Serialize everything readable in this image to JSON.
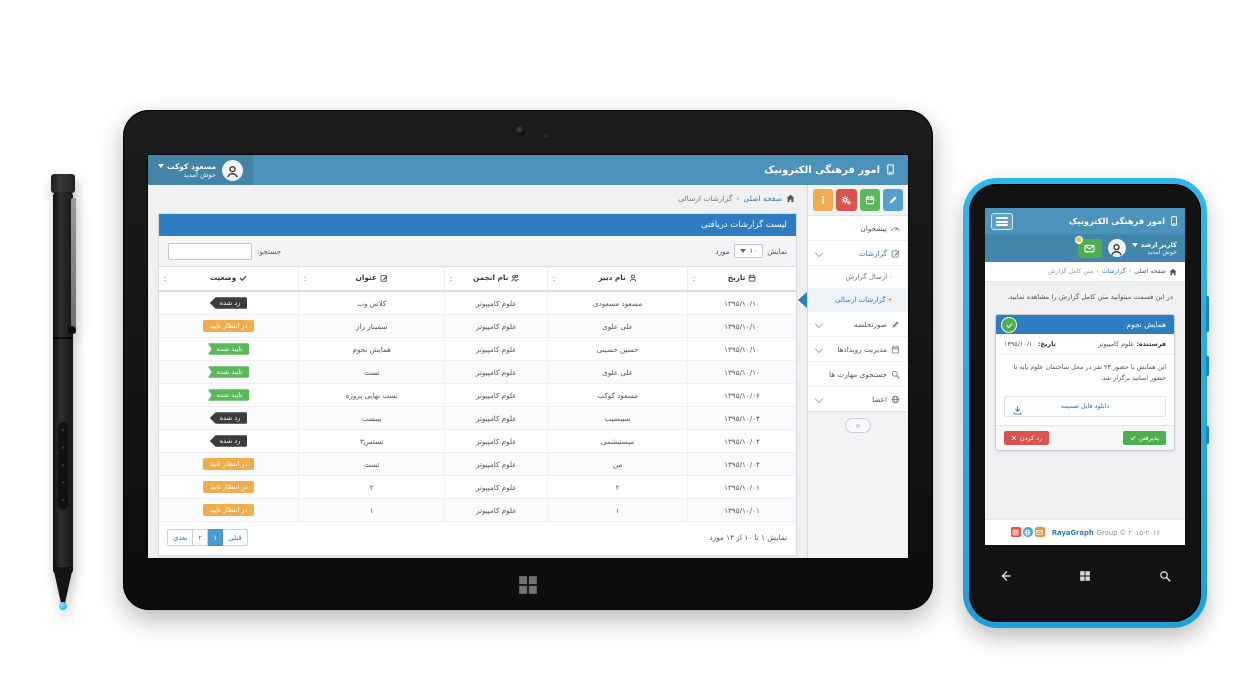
{
  "app_title": "امور فرهنگی الکترونیک",
  "colors": {
    "topbar_blue": "#4b93ba",
    "panel_blue": "#2e7dc2",
    "link_blue": "#337ab7",
    "badge_rejected": "#3c3c3c",
    "badge_pending": "#f0ad4e",
    "badge_approved": "#5cb85c",
    "phone_frame_cyan": "#29b0e8",
    "accept_green": "#4cae4c",
    "reject_red": "#d9534f"
  },
  "tablet": {
    "user": {
      "name": "مسعود کوکب",
      "welcome": "خوش آمدید"
    },
    "breadcrumb": {
      "home": "صفحه اصلی",
      "sep": "›",
      "current": "گزارشات ارسالی"
    },
    "sidebar": {
      "quick_buttons": [
        {
          "name": "info-button",
          "icon": "info-icon",
          "color": "#f0ad4e"
        },
        {
          "name": "settings-button",
          "icon": "gears-icon",
          "color": "#d9534f"
        },
        {
          "name": "events-button",
          "icon": "calendar-icon",
          "color": "#5cb85c"
        },
        {
          "name": "compose-button",
          "icon": "pencil-icon",
          "color": "#56a0ce"
        }
      ],
      "items": [
        {
          "label": "پیشخوان",
          "icon": "gauge-icon",
          "type": "parent"
        },
        {
          "label": "گزارشات",
          "icon": "edit-icon",
          "type": "parent",
          "chevron": true,
          "open": true
        },
        {
          "label": "ارسال گزارش",
          "type": "child"
        },
        {
          "label": "گزارشات ارسالی",
          "type": "child",
          "active": true
        },
        {
          "label": "صورتجلسه",
          "icon": "pencil-icon",
          "type": "parent",
          "chevron": true
        },
        {
          "label": "مدیریت رویدادها",
          "icon": "calendar-icon",
          "type": "parent",
          "chevron": true
        },
        {
          "label": "جستجوی مهارت ها",
          "icon": "search-icon",
          "type": "parent"
        },
        {
          "label": "اعضا",
          "icon": "globe-icon",
          "type": "parent",
          "chevron": true
        }
      ],
      "collapse_glyph": "«"
    },
    "panel": {
      "title": "لیست گزارشات دریافتی",
      "show_label": "نمایش",
      "show_value": "۱۰",
      "unit_label": "مورد",
      "search_label": "جستجو:"
    },
    "table": {
      "columns": [
        {
          "label": "تاریخ",
          "icon": "calendar-icon"
        },
        {
          "label": "نام دبیر",
          "icon": "user-icon"
        },
        {
          "label": "نام انجمن",
          "icon": "users-icon"
        },
        {
          "label": "عنوان",
          "icon": "edit-icon"
        },
        {
          "label": "وضعیت",
          "icon": "check-icon"
        }
      ],
      "rows": [
        {
          "date": "۱۳۹۵/۱۰/۱۰",
          "secretary": "مسعود مسعودی",
          "association": "علوم کامپیوتر",
          "title": "کلاس وب",
          "status": "رد شده",
          "status_type": "rejected"
        },
        {
          "date": "۱۳۹۵/۱۰/۱۰",
          "secretary": "علی علوی",
          "association": "علوم کامپیوتر",
          "title": "سمینار راز",
          "status": "در انتظار تایید",
          "status_type": "pending"
        },
        {
          "date": "۱۳۹۵/۱۰/۱۰",
          "secretary": "حسین حسینی",
          "association": "علوم کامپیوتر",
          "title": "همایش نجوم",
          "status": "تایید شده",
          "status_type": "approved"
        },
        {
          "date": "۱۳۹۵/۱۰/۱۰",
          "secretary": "علی علوی",
          "association": "علوم کامپیوتر",
          "title": "تست",
          "status": "تایید شده",
          "status_type": "approved"
        },
        {
          "date": "۱۳۹۵/۱۰/۰۶",
          "secretary": "مسعود کوکب",
          "association": "علوم کامپیوتر",
          "title": "تست نهایی پروژه",
          "status": "تایید شده",
          "status_type": "approved"
        },
        {
          "date": "۱۳۹۵/۱۰/۰۴",
          "secretary": "سیبسیب",
          "association": "علوم کامپیوتر",
          "title": "بیبسب",
          "status": "رد شده",
          "status_type": "rejected"
        },
        {
          "date": "۱۳۹۵/۱۰/۰۴",
          "secretary": "میسنیشمی",
          "association": "علوم کامپیوتر",
          "title": "تستس۳",
          "status": "رد شده",
          "status_type": "rejected"
        },
        {
          "date": "۱۳۹۵/۱۰/۰۴",
          "secretary": "من",
          "association": "علوم کامپیوتر",
          "title": "تست",
          "status": "در انتظار تایید",
          "status_type": "pending"
        },
        {
          "date": "۱۳۹۵/۱۰/۰۱",
          "secretary": "۲",
          "association": "علوم کامپیوتر",
          "title": "۲",
          "status": "در انتظار تایید",
          "status_type": "pending"
        },
        {
          "date": "۱۳۹۵/۱۰/۰۱",
          "secretary": "۱",
          "association": "علوم کامپیوتر",
          "title": "۱",
          "status": "در انتظار تایید",
          "status_type": "pending"
        }
      ]
    },
    "footer": {
      "info": "نمایش ۱ تا ۱۰ از ۱۳ مورد",
      "prev": "قبلی",
      "pages": [
        "۱",
        "۲"
      ],
      "active_page": "۱",
      "next": "بعدی"
    }
  },
  "phone": {
    "user": {
      "name": "کاربر ارشد",
      "welcome": "خوش آمدید"
    },
    "breadcrumb": {
      "home": "صفحه اصلی",
      "sep": "›",
      "mid": "گزارشات",
      "current": "متن کامل گزارش"
    },
    "intro": "در این قسمت میتوانید متن کامل گزارش را مشاهده نمایید.",
    "card": {
      "title": "همایش نجوم",
      "sender_label": "فرستنده:",
      "sender": "علوم کامپیوتر",
      "date_label": "تاریخ:",
      "date": "۱۳۹۵/۱۰/۱۰",
      "body": "این همایش با حضور ۲۳ نفر در محل ساختمان علوم پایه با حضور اساتید برگزار شد.",
      "attachment": "دانلود فایل ضمیمه",
      "accept": "پذیرفتن",
      "reject": "رد کردن"
    },
    "footer": {
      "brand": "RayaGraph",
      "rest": " Group © ۲۰۱۵-۲۰۱۶",
      "social_icons": [
        {
          "name": "instagram-icon",
          "glyph": "camera-icon",
          "color": "#e8573f",
          "shape": "square"
        },
        {
          "name": "globe-icon",
          "glyph": "globe-icon",
          "color": "#36a3dc",
          "shape": "circle"
        },
        {
          "name": "email-icon",
          "glyph": "envelope-icon",
          "color": "#ef9234",
          "shape": "square"
        }
      ]
    },
    "nav_icons": [
      "back-icon",
      "windows-icon",
      "search-icon"
    ]
  }
}
